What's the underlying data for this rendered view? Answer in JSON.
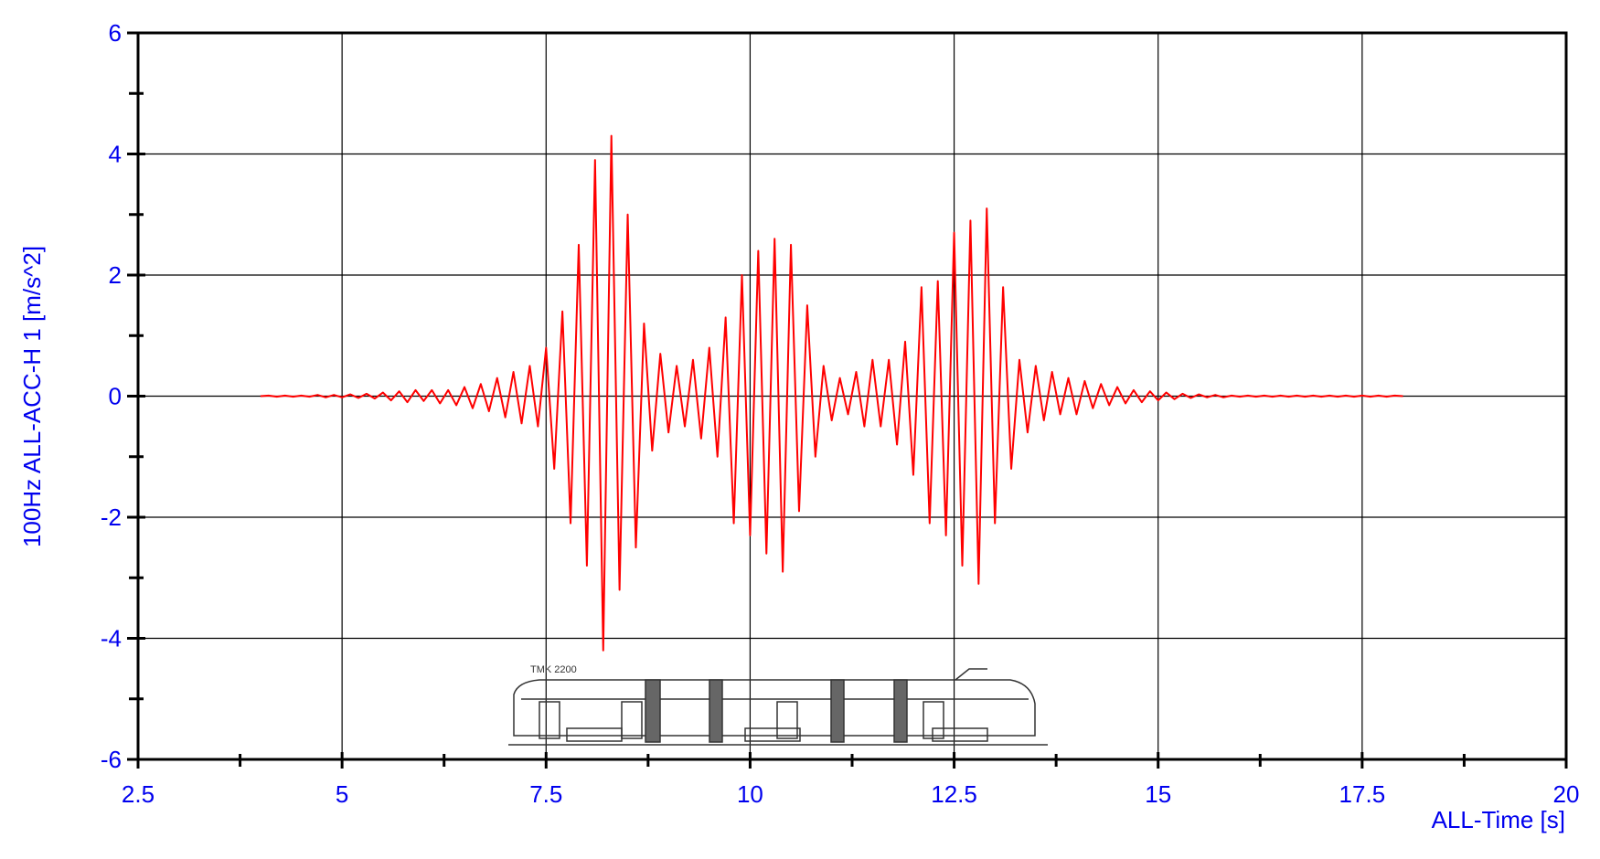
{
  "chart_data": {
    "type": "line",
    "x_label": "ALL-Time [s]",
    "y_label": "100Hz ALL-ACC-H 1 [m/s^2]",
    "annotation": "TMK 2200",
    "color": "#ff0000",
    "xlim": [
      2.5,
      20
    ],
    "xticks": [
      2.5,
      5,
      7.5,
      10,
      12.5,
      15,
      17.5,
      20
    ],
    "xminorticks": [
      3.75,
      6.25,
      8.75,
      11.25,
      13.75,
      16.25,
      18.75
    ],
    "ylim": [
      -6,
      6
    ],
    "yticks": [
      -6,
      -4,
      -2,
      0,
      2,
      4,
      6
    ],
    "yminorticks": [
      -5,
      -3,
      -1,
      1,
      3,
      5
    ],
    "grid": true,
    "x": [
      4.0,
      4.1,
      4.2,
      4.3,
      4.4,
      4.5,
      4.6,
      4.7,
      4.8,
      4.9,
      5.0,
      5.1,
      5.2,
      5.3,
      5.4,
      5.5,
      5.6,
      5.7,
      5.8,
      5.9,
      6.0,
      6.1,
      6.2,
      6.3,
      6.4,
      6.5,
      6.6,
      6.7,
      6.8,
      6.9,
      7.0,
      7.1,
      7.2,
      7.3,
      7.4,
      7.5,
      7.6,
      7.7,
      7.8,
      7.9,
      8.0,
      8.1,
      8.2,
      8.3,
      8.4,
      8.5,
      8.6,
      8.7,
      8.8,
      8.9,
      9.0,
      9.1,
      9.2,
      9.3,
      9.4,
      9.5,
      9.6,
      9.7,
      9.8,
      9.9,
      10.0,
      10.1,
      10.2,
      10.3,
      10.4,
      10.5,
      10.6,
      10.7,
      10.8,
      10.9,
      11.0,
      11.1,
      11.2,
      11.3,
      11.4,
      11.5,
      11.6,
      11.7,
      11.8,
      11.9,
      12.0,
      12.1,
      12.2,
      12.3,
      12.4,
      12.5,
      12.6,
      12.7,
      12.8,
      12.9,
      13.0,
      13.1,
      13.2,
      13.3,
      13.4,
      13.5,
      13.6,
      13.7,
      13.8,
      13.9,
      14.0,
      14.1,
      14.2,
      14.3,
      14.4,
      14.5,
      14.6,
      14.7,
      14.8,
      14.9,
      15.0,
      15.1,
      15.2,
      15.3,
      15.4,
      15.5,
      15.6,
      15.7,
      15.8,
      15.9,
      16.0,
      16.1,
      16.2,
      16.3,
      16.4,
      16.5,
      16.6,
      16.7,
      16.8,
      16.9,
      17.0,
      17.1,
      17.2,
      17.3,
      17.4,
      17.5,
      17.6,
      17.7,
      17.8,
      17.9,
      18.0
    ],
    "values": [
      0,
      0.01,
      -0.01,
      0.01,
      -0.01,
      0.01,
      -0.01,
      0.02,
      -0.02,
      0.02,
      -0.02,
      0.03,
      -0.03,
      0.04,
      -0.04,
      0.06,
      -0.07,
      0.08,
      -0.1,
      0.1,
      -0.08,
      0.1,
      -0.12,
      0.1,
      -0.15,
      0.15,
      -0.2,
      0.2,
      -0.25,
      0.3,
      -0.35,
      0.4,
      -0.45,
      0.5,
      -0.5,
      0.8,
      -1.2,
      1.4,
      -2.1,
      2.5,
      -2.8,
      3.9,
      -4.2,
      4.3,
      -3.2,
      3.0,
      -2.5,
      1.2,
      -0.9,
      0.7,
      -0.6,
      0.5,
      -0.5,
      0.6,
      -0.7,
      0.8,
      -1.0,
      1.3,
      -2.1,
      2.0,
      -2.3,
      2.4,
      -2.6,
      2.6,
      -2.9,
      2.5,
      -1.9,
      1.5,
      -1.0,
      0.5,
      -0.4,
      0.3,
      -0.3,
      0.4,
      -0.5,
      0.6,
      -0.5,
      0.6,
      -0.8,
      0.9,
      -1.3,
      1.8,
      -2.1,
      1.9,
      -2.3,
      2.7,
      -2.8,
      2.9,
      -3.1,
      3.1,
      -2.1,
      1.8,
      -1.2,
      0.6,
      -0.6,
      0.5,
      -0.4,
      0.4,
      -0.3,
      0.3,
      -0.3,
      0.25,
      -0.2,
      0.2,
      -0.15,
      0.15,
      -0.12,
      0.1,
      -0.1,
      0.08,
      -0.07,
      0.06,
      -0.05,
      0.04,
      -0.03,
      0.03,
      -0.02,
      0.02,
      -0.02,
      0.01,
      -0.01,
      0.01,
      -0.01,
      0.01,
      -0.01,
      0.01,
      -0.01,
      0.01,
      -0.01,
      0.01,
      -0.01,
      0.01,
      -0.01,
      0.01,
      -0.01,
      0.01,
      -0.01,
      0.01,
      -0.01,
      0.01,
      0
    ]
  }
}
